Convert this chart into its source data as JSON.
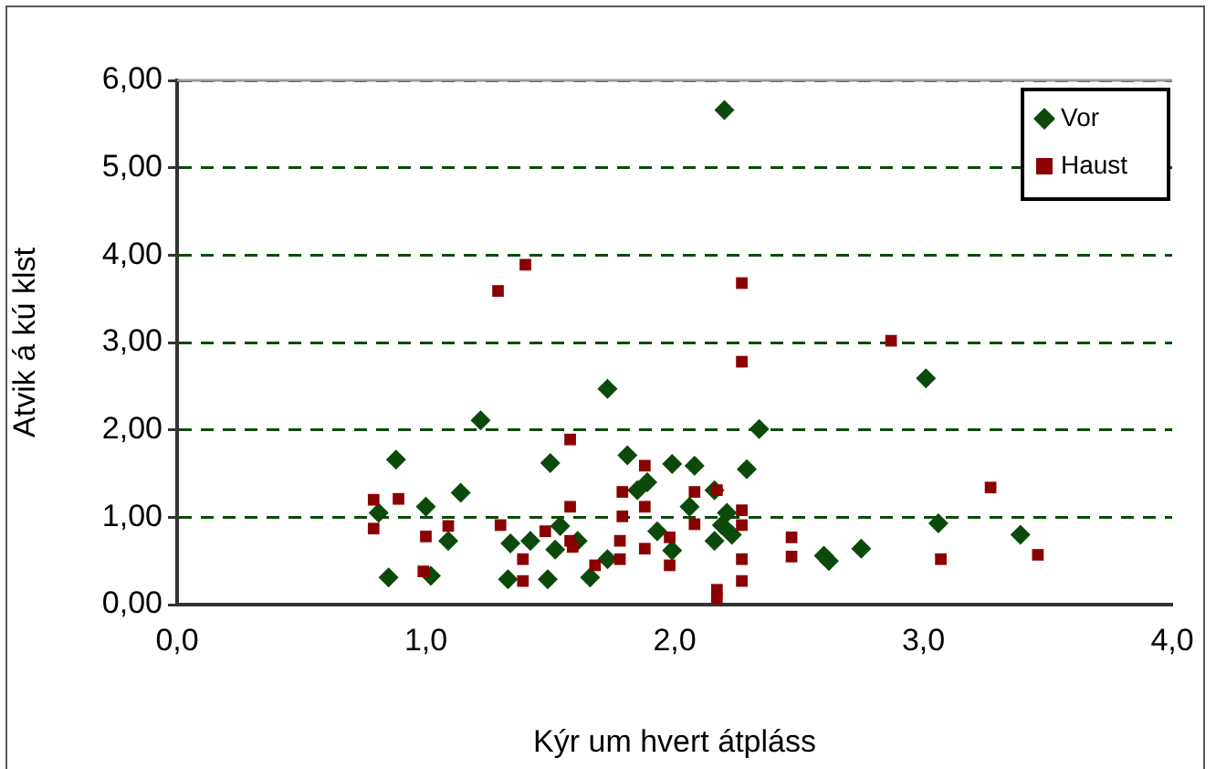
{
  "chart_data": {
    "type": "scatter",
    "xlabel": "Kýr um hvert átpláss",
    "ylabel": "Atvik á kú klst",
    "xlim": [
      0,
      4
    ],
    "xticks": [
      {
        "value": 0,
        "label": "0,0"
      },
      {
        "value": 1,
        "label": "1,0"
      },
      {
        "value": 2,
        "label": "2,0"
      },
      {
        "value": 3,
        "label": "3,0"
      },
      {
        "value": 4,
        "label": "4,0"
      }
    ],
    "ylim": [
      0,
      6
    ],
    "yticks": [
      {
        "value": 0,
        "label": "0,00"
      },
      {
        "value": 1,
        "label": "1,00"
      },
      {
        "value": 2,
        "label": "2,00"
      },
      {
        "value": 3,
        "label": "3,00"
      },
      {
        "value": 4,
        "label": "4,00"
      },
      {
        "value": 5,
        "label": "5,00"
      },
      {
        "value": 6,
        "label": "6,00"
      }
    ],
    "grid": "y",
    "legend": "top right",
    "series": [
      {
        "name": "Vor",
        "color": "#0b4a0b",
        "marker": "diamond",
        "x": [
          0.88,
          0.81,
          0.85,
          1.0,
          1.02,
          1.09,
          1.14,
          1.22,
          1.73,
          2.34,
          1.5,
          1.81,
          1.99,
          2.08,
          2.29,
          1.89,
          1.85,
          2.16,
          2.06,
          2.21,
          2.19,
          2.23,
          2.16,
          1.54,
          1.52,
          1.42,
          1.34,
          1.61,
          1.93,
          1.99,
          1.33,
          1.49,
          1.66,
          1.73,
          3.01,
          2.6,
          2.62,
          2.75,
          3.06,
          3.39,
          2.2
        ],
        "values": [
          1.66,
          1.05,
          0.31,
          1.12,
          0.33,
          0.73,
          1.28,
          2.11,
          2.47,
          2.01,
          1.62,
          1.71,
          1.61,
          1.59,
          1.55,
          1.4,
          1.31,
          1.31,
          1.12,
          1.05,
          0.91,
          0.8,
          0.73,
          0.9,
          0.63,
          0.73,
          0.7,
          0.73,
          0.84,
          0.62,
          0.29,
          0.29,
          0.31,
          0.52,
          2.59,
          0.56,
          0.5,
          0.64,
          0.93,
          0.8,
          5.66
        ]
      },
      {
        "name": "Haust",
        "color": "#8b0000",
        "marker": "square",
        "x": [
          0.79,
          0.79,
          0.89,
          1.0,
          0.99,
          1.09,
          2.27,
          1.58,
          1.88,
          1.79,
          1.88,
          2.08,
          2.17,
          1.79,
          1.58,
          1.3,
          1.48,
          1.58,
          1.59,
          1.39,
          1.78,
          1.78,
          1.88,
          1.98,
          1.98,
          1.68,
          1.39,
          2.08,
          2.27,
          2.27,
          2.27,
          2.27,
          2.17,
          2.17,
          2.47,
          2.47,
          2.87,
          3.27,
          3.07,
          3.46,
          1.29,
          1.4,
          2.27
        ],
        "values": [
          1.2,
          0.87,
          1.21,
          0.78,
          0.38,
          0.9,
          2.78,
          1.89,
          1.59,
          1.29,
          1.12,
          1.29,
          1.31,
          1.01,
          1.12,
          0.91,
          0.84,
          0.73,
          0.66,
          0.52,
          0.73,
          0.52,
          0.64,
          0.77,
          0.45,
          0.45,
          0.27,
          0.92,
          1.08,
          0.91,
          0.52,
          0.27,
          0.17,
          0.07,
          0.77,
          0.55,
          3.02,
          1.34,
          0.52,
          0.57,
          3.59,
          3.89,
          3.68
        ]
      }
    ]
  }
}
